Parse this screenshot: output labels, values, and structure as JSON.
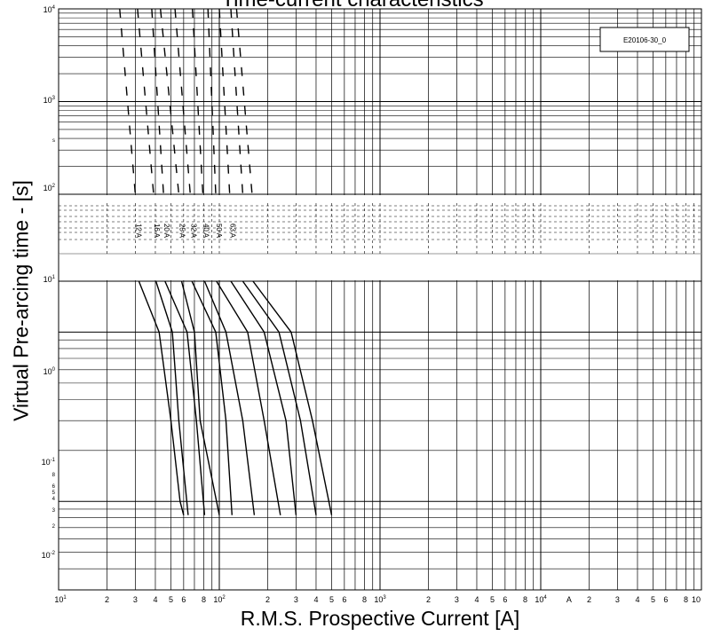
{
  "page": {
    "title": "Time-current characteristics"
  },
  "chart_data": {
    "type": "line",
    "title": "Time-current characteristics",
    "xlabel": "R.M.S. Prospective Current [A]",
    "ylabel": "Virtual Pre-arcing time - [s]",
    "x_scale": "log",
    "x_range": [
      10,
      100000
    ],
    "y_segments": [
      {
        "scale": "log",
        "range": [
          100,
          10000
        ],
        "tick_labels": [
          "10^2",
          "10^3",
          "10^4"
        ],
        "extra_label": "s"
      },
      {
        "scale": "linear",
        "range": [
          20,
          100
        ],
        "note": "broken axis band"
      },
      {
        "scale": "log",
        "range": [
          0.003,
          0.2
        ],
        "tick_labels": [
          "10^-2",
          "2",
          "3",
          "4",
          "5",
          "6",
          "8",
          "10^-1",
          "10^0",
          "10^1"
        ]
      }
    ],
    "x_tick_labels": [
      "10^1",
      "2",
      "3",
      "4",
      "5",
      "6",
      "8",
      "10^2",
      "2",
      "3",
      "4",
      "5",
      "6",
      "8",
      "10^3",
      "2",
      "3",
      "4",
      "5",
      "6",
      "8",
      "10^4",
      "A",
      "2",
      "3",
      "4",
      "5",
      "6",
      "8",
      "10"
    ],
    "legend_box": "E20106-30_0",
    "grid": true,
    "series": [
      {
        "name": "12 A",
        "upper_dashed": [
          [
            24,
            10000
          ],
          [
            30,
            100
          ]
        ],
        "lower": [
          [
            31.6,
            0.2
          ],
          [
            42.2,
            0.1
          ],
          [
            50,
            0.03
          ],
          [
            57,
            0.01
          ],
          [
            60,
            0.0083
          ]
        ]
      },
      {
        "name": "16 A",
        "upper_dashed": [
          [
            31,
            10000
          ],
          [
            39,
            100
          ]
        ],
        "lower": [
          [
            40.3,
            0.2
          ],
          [
            51,
            0.1
          ],
          [
            56,
            0.03
          ],
          [
            64,
            0.0083
          ]
        ]
      },
      {
        "name": "20 A",
        "upper_dashed": [
          [
            38,
            10000
          ],
          [
            45,
            100
          ]
        ],
        "lower": [
          [
            45.9,
            0.2
          ],
          [
            63,
            0.1
          ],
          [
            72,
            0.03
          ],
          [
            81,
            0.0083
          ]
        ]
      },
      {
        "name": "25 A",
        "upper_dashed": [
          [
            43,
            10000
          ],
          [
            56,
            100
          ]
        ],
        "lower": [
          [
            58.2,
            0.2
          ],
          [
            70,
            0.1
          ],
          [
            76,
            0.03
          ],
          [
            100,
            0.0083
          ]
        ]
      },
      {
        "name": "32 A",
        "upper_dashed": [
          [
            53,
            10000
          ],
          [
            66,
            100
          ]
        ],
        "lower": [
          [
            67.5,
            0.2
          ],
          [
            95,
            0.1
          ],
          [
            110,
            0.03
          ],
          [
            120,
            0.0083
          ]
        ]
      },
      {
        "name": "40 A",
        "upper_dashed": [
          [
            68,
            10000
          ],
          [
            79,
            100
          ]
        ],
        "lower": [
          [
            81,
            0.2
          ],
          [
            110,
            0.1
          ],
          [
            140,
            0.03
          ],
          [
            165,
            0.0083
          ]
        ]
      },
      {
        "name": "50 A",
        "upper_dashed": [
          [
            85,
            10000
          ],
          [
            95,
            100
          ]
        ],
        "lower": [
          [
            96,
            0.2
          ],
          [
            150,
            0.1
          ],
          [
            190,
            0.03
          ],
          [
            240,
            0.0083
          ]
        ]
      },
      {
        "name": "63 A",
        "upper_dashed": [
          [
            100,
            10000
          ],
          [
            116,
            100
          ]
        ],
        "lower": [
          [
            118,
            0.2
          ],
          [
            190,
            0.1
          ],
          [
            260,
            0.03
          ],
          [
            300,
            0.0083
          ]
        ]
      },
      {
        "name": "",
        "upper_dashed": [
          [
            118,
            10000
          ],
          [
            140,
            100
          ]
        ],
        "lower": [
          [
            140,
            0.2
          ],
          [
            235,
            0.1
          ],
          [
            320,
            0.03
          ],
          [
            400,
            0.0083
          ]
        ]
      },
      {
        "name": "",
        "upper_dashed": [
          [
            128,
            10000
          ],
          [
            160,
            100
          ]
        ],
        "lower": [
          [
            162,
            0.2
          ],
          [
            280,
            0.1
          ],
          [
            380,
            0.03
          ],
          [
            500,
            0.0083
          ]
        ]
      }
    ]
  }
}
